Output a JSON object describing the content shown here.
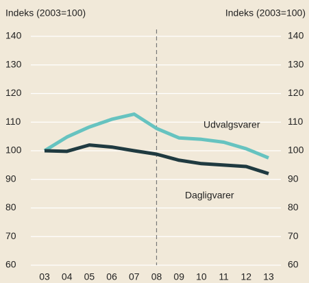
{
  "chart_data": {
    "type": "line",
    "y_label": "Indeks (2003=100)",
    "y2_label": "Indeks (2003=100)",
    "categories": [
      "03",
      "04",
      "05",
      "06",
      "07",
      "08",
      "09",
      "10",
      "11",
      "12",
      "13"
    ],
    "series": [
      {
        "name": "Udvalgsvarer",
        "color": "#66c3c0",
        "values": [
          100,
          104.8,
          108.3,
          111,
          112.8,
          107.8,
          104.5,
          104,
          103,
          100.7,
          97.5
        ]
      },
      {
        "name": "Dagligvarer",
        "color": "#1f3a40",
        "values": [
          100,
          99.8,
          102,
          101.3,
          100,
          98.8,
          96.7,
          95.5,
          95,
          94.5,
          92
        ]
      }
    ],
    "ylim": [
      60,
      140
    ],
    "yticks": [
      60,
      70,
      80,
      90,
      100,
      110,
      120,
      130,
      140
    ],
    "y2lim": [
      60,
      140
    ],
    "y2ticks": [
      60,
      70,
      80,
      90,
      100,
      110,
      120,
      130,
      140
    ],
    "grid": true,
    "vline": "08"
  }
}
